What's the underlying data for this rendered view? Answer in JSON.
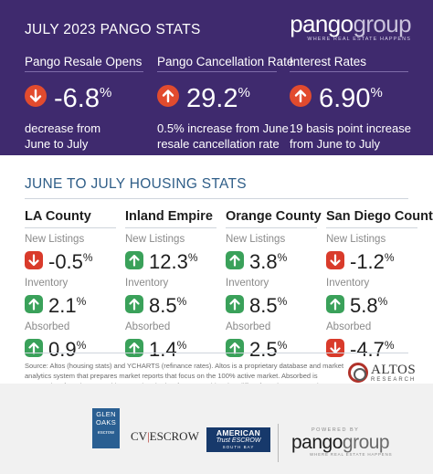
{
  "top": {
    "title": "JULY 2023 PANGO STATS",
    "logo_pango": "pango",
    "logo_group": "group",
    "logo_tagline": "WHERE REAL ESTATE HAPPENS",
    "stats": [
      {
        "label": "Pango Resale Opens",
        "value": "-6.8",
        "unit": "%",
        "direction": "down",
        "desc_line1": "decrease from",
        "desc_line2": "June to July"
      },
      {
        "label": "Pango Cancellation Rate",
        "value": "29.2",
        "unit": "%",
        "direction": "up",
        "desc_line1": "0.5% increase from June",
        "desc_line2": "resale cancellation rate"
      },
      {
        "label": "Interest Rates",
        "value": "6.90",
        "unit": "%",
        "direction": "up",
        "desc_line1": "19 basis point increase",
        "desc_line2": "from June to July"
      }
    ],
    "colors": {
      "background": "#3f2a6e",
      "indicator": "#e24b2e"
    }
  },
  "housing": {
    "title": "JUNE TO JULY HOUSING STATS",
    "counties": [
      {
        "name": "LA County",
        "metrics": [
          {
            "label": "New Listings",
            "value": "-0.5",
            "unit": "%",
            "direction": "down"
          },
          {
            "label": "Inventory",
            "value": "2.1",
            "unit": "%",
            "direction": "up"
          },
          {
            "label": "Absorbed",
            "value": "0.9",
            "unit": "%",
            "direction": "up"
          }
        ]
      },
      {
        "name": "Inland Empire",
        "metrics": [
          {
            "label": "New Listings",
            "value": "12.3",
            "unit": "%",
            "direction": "up"
          },
          {
            "label": "Inventory",
            "value": "8.5",
            "unit": "%",
            "direction": "up"
          },
          {
            "label": "Absorbed",
            "value": "1.4",
            "unit": "%",
            "direction": "up"
          }
        ]
      },
      {
        "name": "Orange County",
        "metrics": [
          {
            "label": "New Listings",
            "value": "3.8",
            "unit": "%",
            "direction": "up"
          },
          {
            "label": "Inventory",
            "value": "8.5",
            "unit": "%",
            "direction": "up"
          },
          {
            "label": "Absorbed",
            "value": "2.5",
            "unit": "%",
            "direction": "up"
          }
        ]
      },
      {
        "name": "San Diego County",
        "metrics": [
          {
            "label": "New Listings",
            "value": "-1.2",
            "unit": "%",
            "direction": "down"
          },
          {
            "label": "Inventory",
            "value": "5.8",
            "unit": "%",
            "direction": "up"
          },
          {
            "label": "Absorbed",
            "value": "-4.7",
            "unit": "%",
            "direction": "down"
          }
        ]
      }
    ],
    "colors": {
      "up": "#3aa15a",
      "down": "#d93b2b",
      "title": "#2f5e88"
    },
    "source": "Source: Altos (housing stats) and YCHARTS (refinance rates). Altos is a proprietary database and market analytics system that prepares market reports that focus on the 100% active market. Absorbed is commonly referred to as “Sold.” Our “absorbed” refers to anything that differs from that 100% active state.",
    "altos_name": "ALTOS",
    "altos_sub": "RESEARCH"
  },
  "footer": {
    "glen_line1": "GLEN",
    "glen_line2": "OAKS",
    "glen_line3": "escrow",
    "cv_left": "CV",
    "cv_right": "ESCROW",
    "american_line1": "AMERICAN",
    "american_line2": "Trust ESCROW",
    "american_line3": "SOUTH BAY",
    "powered_by": "POWERED BY",
    "pango": "pango",
    "group": "group",
    "tagline": "WHERE REAL ESTATE HAPPENS"
  }
}
